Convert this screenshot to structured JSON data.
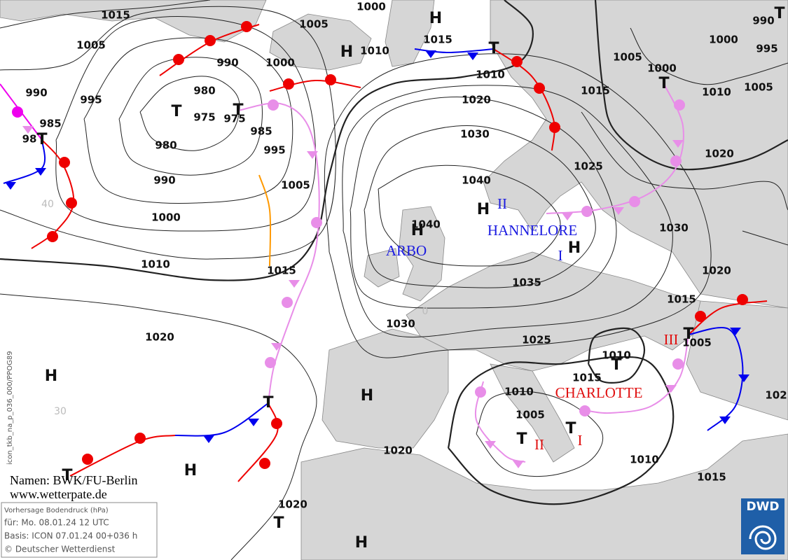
{
  "isobar_labels": [
    "1015",
    "1000",
    "1005",
    "1005",
    "1010",
    "1015",
    "1010",
    "990",
    "1000",
    "990",
    "995",
    "980",
    "975",
    "975",
    "985",
    "985",
    "980",
    "995",
    "990",
    "1005",
    "1000",
    "1010",
    "1015",
    "1020",
    "1030",
    "1040",
    "1040",
    "1035",
    "1030",
    "1025",
    "1020",
    "1020",
    "1020",
    "1015",
    "1005",
    "1000",
    "1000",
    "995",
    "990",
    "1010",
    "1005",
    "1025",
    "1020",
    "1030",
    "1020",
    "1015",
    "1010",
    "1015",
    "1010",
    "1005",
    "1010",
    "1015",
    "1005",
    "102",
    "98"
  ],
  "pressure_centers": [
    "H",
    "H",
    "T",
    "T",
    "T",
    "T",
    "T",
    "T",
    "H",
    "H",
    "H",
    "H",
    "H",
    "H",
    "T",
    "T",
    "T",
    "H",
    "T",
    "T",
    "T",
    "T"
  ],
  "system_names": [
    "ARBO",
    "HANNELORE",
    "II",
    "I",
    "CHARLOTTE",
    "III",
    "II",
    "I"
  ],
  "grid_labels": [
    "40",
    "30",
    "0"
  ],
  "credits": {
    "names": "Namen: BWK/FU-Berlin",
    "website": "www.wetterpate.de"
  },
  "info_box": {
    "title": "Vorhersage Bodendruck (hPa)",
    "valid": "für:  Mo. 08.01.24  12 UTC",
    "basis": "Basis: ICON  07.01.24 00+036 h",
    "copyright": "© Deutscher Wetterdienst"
  },
  "logo": "DWD",
  "side_text": "icon_tkb_na_p_036_000/PPOG89"
}
